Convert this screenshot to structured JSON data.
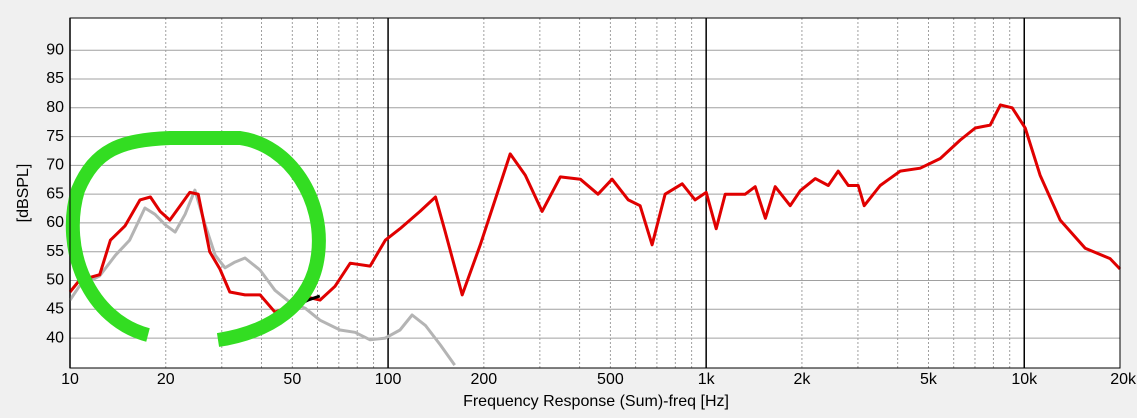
{
  "chart_data": {
    "type": "line",
    "xlabel": "Frequency Response (Sum)-freq [Hz]",
    "ylabel": "[dBSPL]",
    "xscale": "log",
    "grid": true,
    "xlim": [
      10,
      20000
    ],
    "ylim": [
      34.8,
      95.6
    ],
    "xticks": [
      10,
      20,
      50,
      100,
      200,
      500,
      {
        "value": 1000,
        "label": "1k"
      },
      {
        "value": 2000,
        "label": "2k"
      },
      {
        "value": 5000,
        "label": "5k"
      },
      {
        "value": 10000,
        "label": "10k"
      },
      {
        "value": 20000,
        "label": "20k"
      }
    ],
    "xminor": [
      30,
      40,
      60,
      70,
      80,
      90,
      300,
      400,
      600,
      700,
      800,
      900,
      3000,
      4000,
      6000,
      7000,
      8000,
      9000
    ],
    "yticks": [
      40,
      45,
      50,
      55,
      60,
      65,
      70,
      75,
      80,
      85,
      90
    ],
    "series": [
      {
        "color": "#b4b4b4",
        "x": [
          10,
          10.7,
          12.4,
          13.9,
          15.4,
          17.2,
          18.5,
          19.9,
          21.4,
          23,
          24.7,
          26.6,
          28.6,
          30.7,
          33,
          35.5,
          39.6,
          44.1,
          49.2,
          54.8,
          61.1,
          70.6,
          78.7,
          87.8,
          98,
          109,
          119,
          131,
          146,
          162
        ],
        "values": [
          46.6,
          49,
          50.8,
          54.4,
          57,
          62.6,
          61.5,
          59.7,
          58.4,
          61.5,
          65.7,
          59.7,
          54.4,
          52.2,
          53.2,
          53.9,
          51.8,
          48.3,
          46.2,
          45.2,
          43.1,
          41.4,
          41,
          39.7,
          40,
          41.4,
          44,
          42.2,
          38.8,
          35.3
        ]
      },
      {
        "color": "#e00000",
        "x": [
          10,
          10.7,
          12.4,
          13.4,
          14.9,
          16.6,
          17.9,
          19.2,
          20.6,
          22.2,
          23.8,
          25.3,
          27.5,
          29.6,
          31.8,
          35.5,
          39.6,
          44.1,
          49.2,
          56.9,
          61.1,
          68.1,
          76,
          87.8,
          98,
          109,
          126,
          141,
          151,
          171,
          195,
          217,
          242,
          270,
          305,
          348,
          402,
          457,
          506,
          569,
          620,
          676,
          743,
          841,
          923,
          1000,
          1075,
          1148,
          1327,
          1426,
          1535,
          1648,
          1838,
          1977,
          2203,
          2421,
          2600,
          2798,
          3006,
          3140,
          3526,
          4074,
          4710,
          5445,
          6295,
          7018,
          7818,
          8414,
          9163,
          10070,
          11220,
          12970,
          15550,
          18620,
          20000
        ],
        "values": [
          48,
          50,
          51,
          57,
          59.5,
          64,
          64.5,
          62,
          60.5,
          63,
          65.3,
          65,
          55,
          52,
          48,
          47.5,
          47.5,
          44.5,
          45.5,
          47,
          46.6,
          49,
          53,
          52.5,
          57,
          59,
          62,
          64.5,
          58.6,
          47.5,
          56.2,
          64,
          72,
          68.3,
          62,
          68,
          67.6,
          65,
          67.6,
          64,
          63,
          56.2,
          65,
          66.8,
          64,
          65.3,
          59,
          65,
          65,
          66.3,
          60.8,
          66.3,
          63,
          65.6,
          67.7,
          66.5,
          69,
          66.5,
          66.5,
          63,
          66.5,
          69,
          69.5,
          71.2,
          74.4,
          76.5,
          77,
          80.5,
          80,
          76.5,
          68.3,
          60.5,
          55.6,
          53.8,
          52
        ]
      },
      {
        "color": "#000000",
        "x": [
          47.4,
          52,
          56,
          61
        ],
        "values": [
          45.3,
          45.8,
          46.6,
          47.3
        ]
      }
    ]
  }
}
